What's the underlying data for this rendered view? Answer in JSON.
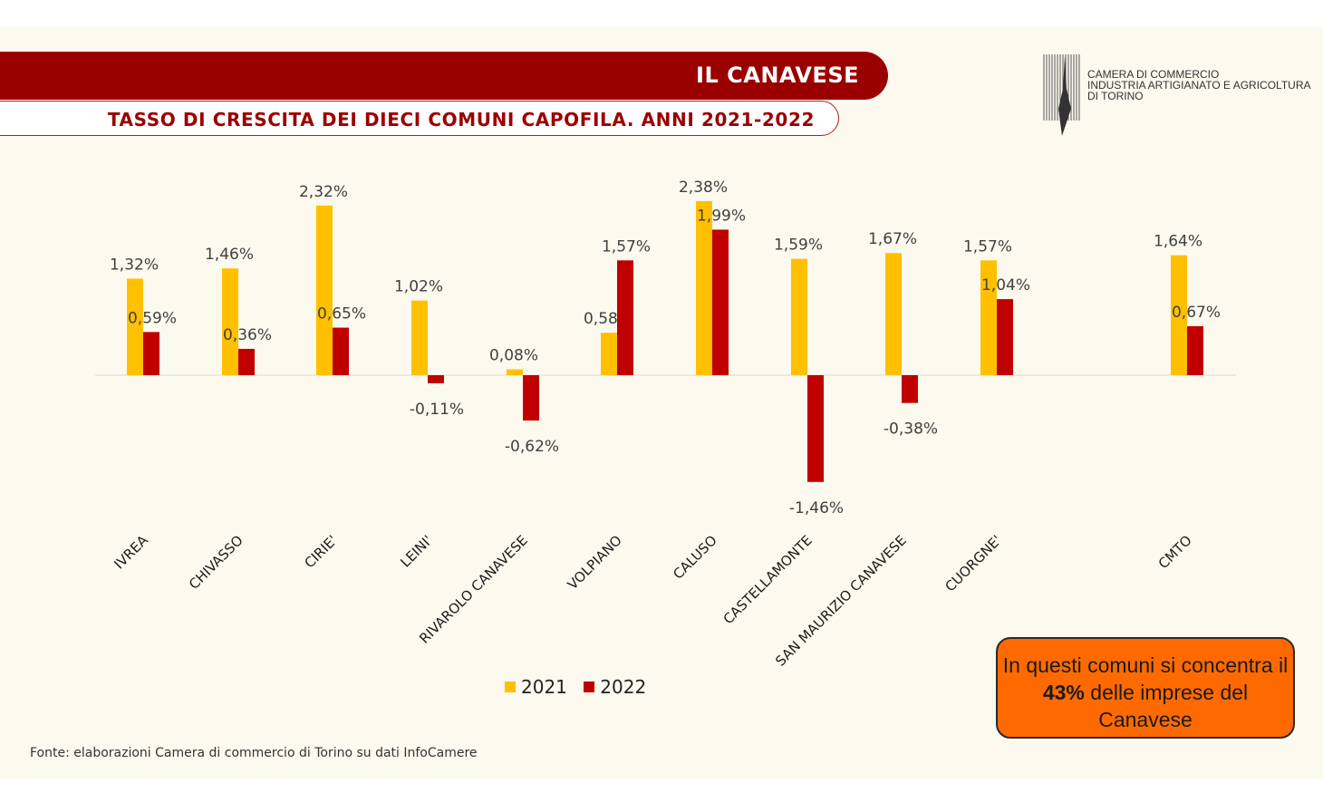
{
  "header": {
    "banner_title": "IL CANAVESE",
    "subtitle": "TASSO DI CRESCITA DEI DIECI COMUNI CAPOFILA. ANNI 2021-2022"
  },
  "logo": {
    "lines": [
      "CAMERA DI COMMERCIO",
      "INDUSTRIA ARTIGIANATO E AGRICOLTURA",
      "DI TORINO"
    ]
  },
  "chart_data": {
    "type": "bar",
    "title": "TASSO DI CRESCITA DEI DIECI COMUNI CAPOFILA. ANNI 2021-2022",
    "categories": [
      "IVREA",
      "CHIVASSO",
      "CIRIE'",
      "LEINI'",
      "RIVAROLO CANAVESE",
      "VOLPIANO",
      "CALUSO",
      "CASTELLAMONTE",
      "SAN MAURIZIO CANAVESE",
      "CUORGNE'",
      "CMTO"
    ],
    "series": [
      {
        "name": "2021",
        "color": "#ffc000",
        "values": [
          1.32,
          1.46,
          2.32,
          1.02,
          0.08,
          0.58,
          2.38,
          1.59,
          1.67,
          1.57,
          1.64
        ],
        "labels": [
          "1,32%",
          "1,46%",
          "2,32%",
          "1,02%",
          "0,08%",
          "0,58%",
          "2,38%",
          "1,59%",
          "1,67%",
          "1,57%",
          "1,64%"
        ]
      },
      {
        "name": "2022",
        "color": "#c00000",
        "values": [
          0.59,
          0.36,
          0.65,
          -0.11,
          -0.62,
          1.57,
          1.99,
          -1.46,
          -0.38,
          1.04,
          0.67
        ],
        "labels": [
          "0,59%",
          "0,36%",
          "0,65%",
          "-0,11%",
          "-0,62%",
          "1,57%",
          "1,99%",
          "-1,46%",
          "-0,38%",
          "1,04%",
          "0,67%"
        ]
      }
    ],
    "ylim": [
      -1.5,
      2.5
    ],
    "grid": false,
    "legend": "bottom-center",
    "xlabel": "",
    "ylabel": ""
  },
  "callout": {
    "text_before": "In questi comuni si concentra il ",
    "highlight": "43%",
    "text_after": " delle imprese del Canavese",
    "background": "#ff6a00"
  },
  "source": "Fonte: elaborazioni Camera di commercio di Torino su dati InfoCamere"
}
